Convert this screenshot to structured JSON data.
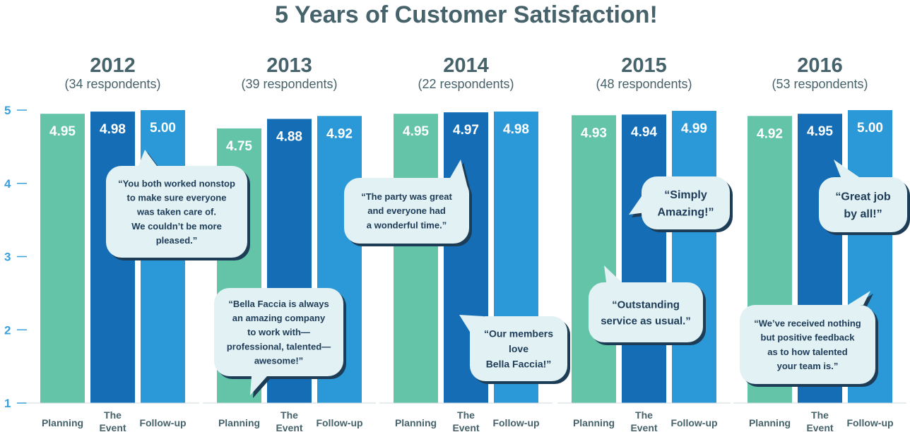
{
  "colors": {
    "planning": "#63c4a8",
    "event": "#156eb5",
    "followup": "#2b98d8",
    "bubble_fill": "#e1f1f4",
    "bubble_shadow": "#1c3d55",
    "text_dark": "#46626b",
    "tick": "#3aa0dc"
  },
  "chart_data": {
    "type": "bar",
    "title": "5 Years of Customer Satisfaction!",
    "ylim": [
      1,
      5
    ],
    "yticks": [
      "1",
      "2",
      "3",
      "4",
      "5"
    ],
    "categories": [
      "Planning",
      "The Event",
      "Follow-up"
    ],
    "grid": false,
    "groups": [
      {
        "year": "2012",
        "respondents": "(34 respondents)",
        "values": [
          4.95,
          4.98,
          5.0
        ],
        "labels": [
          "4.95",
          "4.98",
          "5.00"
        ]
      },
      {
        "year": "2013",
        "respondents": "(39 respondents)",
        "values": [
          4.75,
          4.88,
          4.92
        ],
        "labels": [
          "4.75",
          "4.88",
          "4.92"
        ]
      },
      {
        "year": "2014",
        "respondents": "(22 respondents)",
        "values": [
          4.95,
          4.97,
          4.98
        ],
        "labels": [
          "4.95",
          "4.97",
          "4.98"
        ]
      },
      {
        "year": "2015",
        "respondents": "(48 respondents)",
        "values": [
          4.93,
          4.94,
          4.99
        ],
        "labels": [
          "4.93",
          "4.94",
          "4.99"
        ]
      },
      {
        "year": "2016",
        "respondents": "(53 respondents)",
        "values": [
          4.92,
          4.95,
          5.0
        ],
        "labels": [
          "4.92",
          "4.95",
          "5.00"
        ]
      }
    ],
    "quotes": [
      {
        "lines": [
          "“You both worked nonstop",
          "to make sure everyone",
          "was taken care of.",
          "We couldn’t be more",
          "pleased.”"
        ]
      },
      {
        "lines": [
          "“Bella Faccia is always",
          "an amazing company",
          "to work with—",
          "professional, talented—",
          "awesome!”"
        ]
      },
      {
        "lines": [
          "“The party was great",
          "and everyone had",
          "a wonderful time.”"
        ]
      },
      {
        "lines": [
          "“Our members",
          "love",
          "Bella Faccia!”"
        ]
      },
      {
        "lines": [
          "“Simply",
          "Amazing!”"
        ]
      },
      {
        "lines": [
          "“Outstanding",
          "service as usual.”"
        ]
      },
      {
        "lines": [
          "“Great job",
          "by all!”"
        ]
      },
      {
        "lines": [
          "“We’ve received nothing",
          "but positive feedback",
          "as to how talented",
          "your team is.”"
        ]
      }
    ]
  }
}
